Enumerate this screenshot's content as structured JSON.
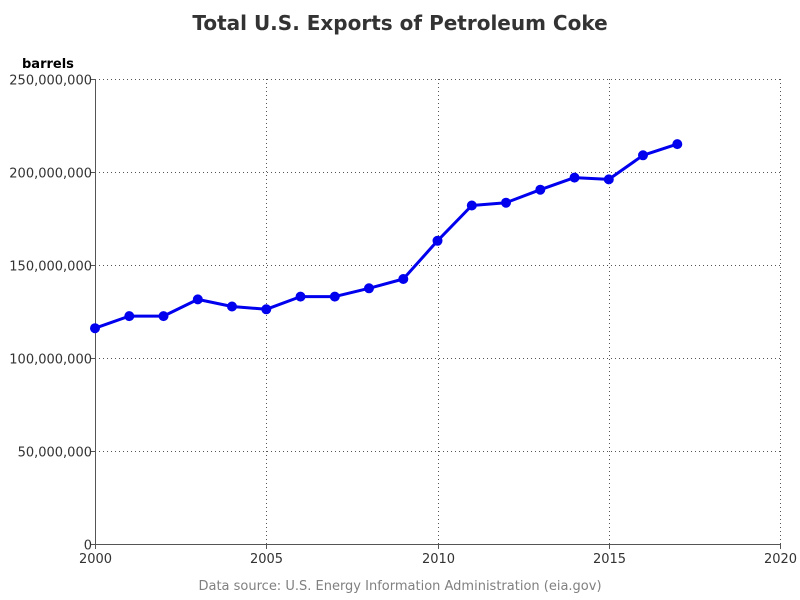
{
  "chart_data": {
    "type": "line",
    "title": "Total U.S. Exports of Petroleum Coke",
    "ylabel": "barrels",
    "xlabel": "",
    "source": "Data source: U.S. Energy Information Administration (eia.gov)",
    "xlim": [
      2000,
      2020
    ],
    "ylim": [
      0,
      250000000
    ],
    "x_ticks": [
      2000,
      2005,
      2010,
      2015,
      2020
    ],
    "x_tick_labels": [
      "2000",
      "2005",
      "2010",
      "2015",
      "2020"
    ],
    "y_ticks": [
      0,
      50000000,
      100000000,
      150000000,
      200000000,
      250000000
    ],
    "y_tick_labels": [
      "0",
      "50,000,000",
      "100,000,000",
      "150,000,000",
      "200,000,000",
      "250,000,000"
    ],
    "grid": true,
    "series": [
      {
        "color": "#0000ee",
        "x": [
          2000,
          2001,
          2002,
          2003,
          2004,
          2005,
          2006,
          2007,
          2008,
          2009,
          2010,
          2011,
          2012,
          2013,
          2014,
          2015,
          2016,
          2017
        ],
        "values": [
          116000000,
          122500000,
          122500000,
          131500000,
          127700000,
          126200000,
          133000000,
          133000000,
          137500000,
          142500000,
          163000000,
          182000000,
          183500000,
          190500000,
          197000000,
          196000000,
          209000000,
          215000000
        ]
      }
    ]
  }
}
